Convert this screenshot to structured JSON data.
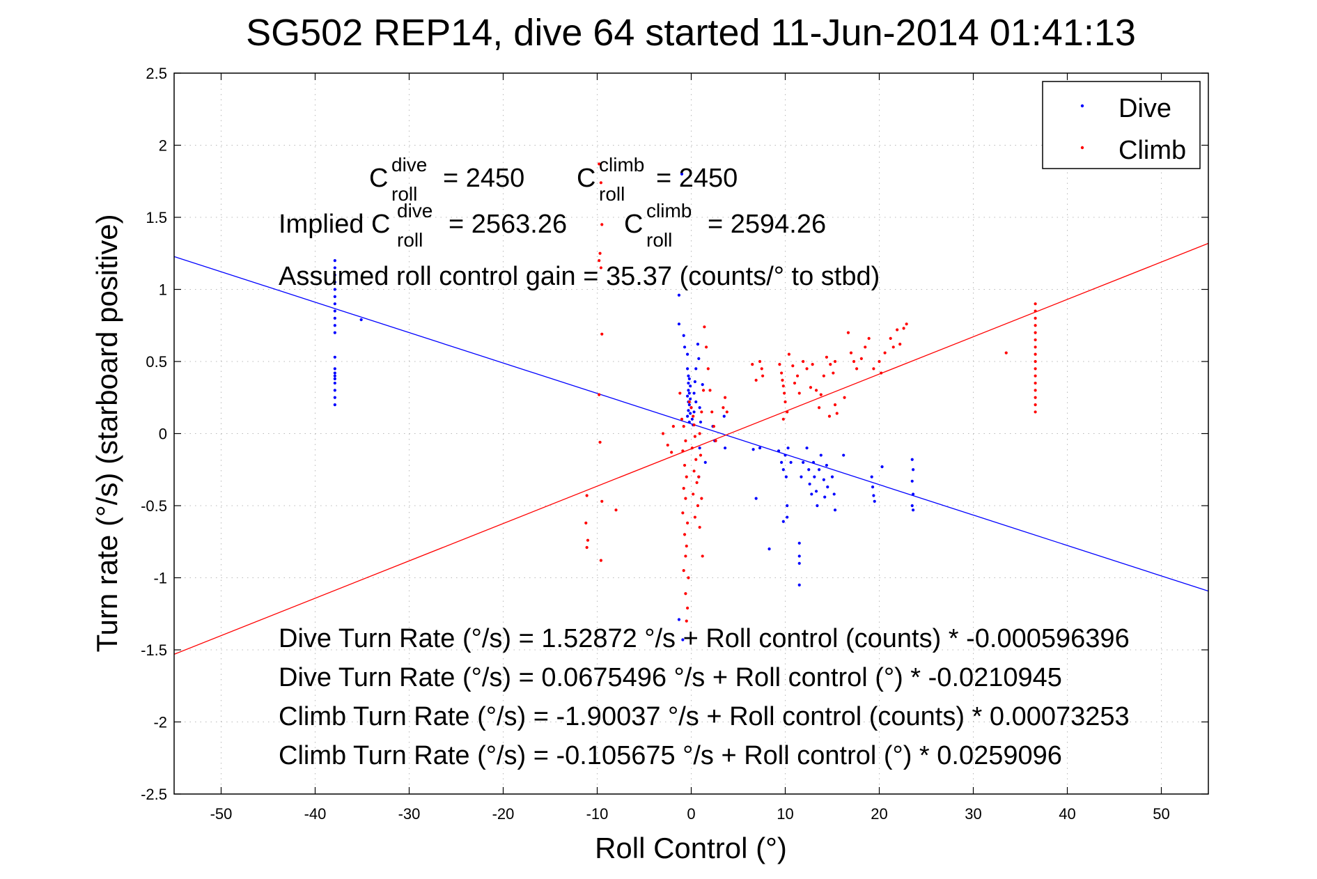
{
  "chart_data": {
    "type": "scatter",
    "title": "SG502 REP14, dive 64 started 11-Jun-2014 01:41:13",
    "xlabel": "Roll Control (°)",
    "ylabel": "Turn rate (°/s) (starboard positive)",
    "xlim": [
      -55,
      55
    ],
    "ylim": [
      -2.5,
      2.5
    ],
    "xticks": [
      -50,
      -40,
      -30,
      -20,
      -10,
      0,
      10,
      20,
      30,
      40,
      50
    ],
    "yticks": [
      -2.5,
      -2,
      -1.5,
      -1,
      -0.5,
      0,
      0.5,
      1,
      1.5,
      2,
      2.5
    ],
    "grid": true,
    "legend_position": "top-right",
    "colors": {
      "dive": "#0000ff",
      "climb": "#ff0000"
    },
    "series": [
      {
        "name": "Dive",
        "marker": "dot",
        "points": [
          [
            -37.9,
            1.2
          ],
          [
            -37.9,
            1.15
          ],
          [
            -37.9,
            1.1
          ],
          [
            -37.9,
            1.05
          ],
          [
            -37.9,
            1.0
          ],
          [
            -37.9,
            0.95
          ],
          [
            -37.9,
            0.9
          ],
          [
            -37.9,
            0.85
          ],
          [
            -37.9,
            0.8
          ],
          [
            -37.9,
            0.75
          ],
          [
            -37.9,
            0.7
          ],
          [
            -37.9,
            0.53
          ],
          [
            -37.9,
            0.45
          ],
          [
            -37.9,
            0.42
          ],
          [
            -37.9,
            0.4
          ],
          [
            -37.9,
            0.38
          ],
          [
            -37.9,
            0.35
          ],
          [
            -37.9,
            0.3
          ],
          [
            -37.9,
            0.25
          ],
          [
            -37.9,
            0.2
          ],
          [
            -35.1,
            0.79
          ],
          [
            -1.0,
            1.8
          ],
          [
            -1.3,
            0.96
          ],
          [
            -1.3,
            0.76
          ],
          [
            -0.8,
            0.68
          ],
          [
            -0.7,
            0.6
          ],
          [
            -0.4,
            0.55
          ],
          [
            -0.4,
            0.45
          ],
          [
            -0.3,
            0.4
          ],
          [
            -0.2,
            0.38
          ],
          [
            -0.3,
            0.35
          ],
          [
            -0.1,
            0.33
          ],
          [
            -0.3,
            0.3
          ],
          [
            -0.2,
            0.28
          ],
          [
            -0.4,
            0.26
          ],
          [
            -0.1,
            0.24
          ],
          [
            -0.3,
            0.22
          ],
          [
            -0.2,
            0.2
          ],
          [
            0.0,
            0.18
          ],
          [
            -0.3,
            0.16
          ],
          [
            -0.1,
            0.14
          ],
          [
            -0.4,
            0.12
          ],
          [
            0.1,
            0.1
          ],
          [
            -0.2,
            0.08
          ],
          [
            0.2,
            0.06
          ],
          [
            0.3,
            0.28
          ],
          [
            0.4,
            0.36
          ],
          [
            0.5,
            0.22
          ],
          [
            0.3,
            0.15
          ],
          [
            0.5,
            0.45
          ],
          [
            0.7,
            0.62
          ],
          [
            0.8,
            0.52
          ],
          [
            1.2,
            0.34
          ],
          [
            0.9,
            0.18
          ],
          [
            1.0,
            0.08
          ],
          [
            0.9,
            -0.1
          ],
          [
            0.8,
            -0.3
          ],
          [
            2.3,
            0.05
          ],
          [
            2.5,
            -0.05
          ],
          [
            3.5,
            0.12
          ],
          [
            3.6,
            -0.1
          ],
          [
            1.5,
            -0.2
          ],
          [
            -1.3,
            -1.29
          ],
          [
            -0.9,
            -1.43
          ],
          [
            6.6,
            -0.11
          ],
          [
            6.9,
            -0.45
          ],
          [
            7.3,
            -0.1
          ],
          [
            8.3,
            -0.8
          ],
          [
            9.3,
            -0.12
          ],
          [
            9.6,
            -0.2
          ],
          [
            9.8,
            -0.25
          ],
          [
            10.0,
            -0.15
          ],
          [
            10.1,
            -0.3
          ],
          [
            10.2,
            -0.5
          ],
          [
            10.2,
            -0.58
          ],
          [
            9.8,
            -0.61
          ],
          [
            10.3,
            -0.1
          ],
          [
            10.6,
            -0.2
          ],
          [
            11.5,
            -0.76
          ],
          [
            11.5,
            -0.85
          ],
          [
            11.5,
            -0.9
          ],
          [
            11.5,
            -1.05
          ],
          [
            11.7,
            -0.3
          ],
          [
            11.9,
            -0.2
          ],
          [
            12.3,
            -0.1
          ],
          [
            12.5,
            -0.25
          ],
          [
            12.6,
            -0.35
          ],
          [
            12.8,
            -0.42
          ],
          [
            13.0,
            -0.2
          ],
          [
            13.1,
            -0.3
          ],
          [
            13.3,
            -0.4
          ],
          [
            13.4,
            -0.5
          ],
          [
            13.6,
            -0.25
          ],
          [
            13.8,
            -0.15
          ],
          [
            14.1,
            -0.32
          ],
          [
            14.2,
            -0.44
          ],
          [
            14.4,
            -0.22
          ],
          [
            14.5,
            -0.37
          ],
          [
            15.0,
            -0.3
          ],
          [
            15.2,
            -0.42
          ],
          [
            15.3,
            -0.53
          ],
          [
            16.2,
            -0.15
          ],
          [
            19.2,
            -0.3
          ],
          [
            19.3,
            -0.37
          ],
          [
            19.4,
            -0.43
          ],
          [
            19.5,
            -0.47
          ],
          [
            20.3,
            -0.23
          ],
          [
            23.5,
            -0.18
          ],
          [
            23.6,
            -0.25
          ],
          [
            23.5,
            -0.33
          ],
          [
            23.6,
            -0.42
          ],
          [
            23.5,
            -0.5
          ],
          [
            23.6,
            -0.53
          ]
        ]
      },
      {
        "name": "Climb",
        "marker": "dot",
        "points": [
          [
            -9.8,
            1.87
          ],
          [
            -9.6,
            1.74
          ],
          [
            -9.5,
            1.45
          ],
          [
            -9.7,
            1.25
          ],
          [
            -9.8,
            1.2
          ],
          [
            -9.6,
            1.15
          ],
          [
            -9.5,
            0.69
          ],
          [
            -9.8,
            0.27
          ],
          [
            -9.7,
            -0.06
          ],
          [
            -9.5,
            -0.47
          ],
          [
            -9.6,
            -0.88
          ],
          [
            -11.1,
            -0.43
          ],
          [
            -11.2,
            -0.62
          ],
          [
            -11.0,
            -0.74
          ],
          [
            -11.1,
            -0.79
          ],
          [
            -8.0,
            -0.53
          ],
          [
            -1.2,
            0.28
          ],
          [
            -1.0,
            0.1
          ],
          [
            -0.8,
            0.05
          ],
          [
            -0.6,
            -0.05
          ],
          [
            -0.9,
            -0.12
          ],
          [
            -0.7,
            -0.22
          ],
          [
            -0.5,
            -0.3
          ],
          [
            -0.8,
            -0.38
          ],
          [
            -0.6,
            -0.45
          ],
          [
            -0.9,
            -0.55
          ],
          [
            -0.4,
            -0.62
          ],
          [
            -0.7,
            -0.7
          ],
          [
            -0.5,
            -0.78
          ],
          [
            -0.6,
            -0.85
          ],
          [
            -0.8,
            -0.95
          ],
          [
            -0.3,
            -1.0
          ],
          [
            -0.6,
            -1.11
          ],
          [
            -0.4,
            -1.21
          ],
          [
            -0.5,
            -1.3
          ],
          [
            -0.2,
            0.22
          ],
          [
            0.0,
            0.18
          ],
          [
            0.2,
            0.12
          ],
          [
            0.3,
            0.06
          ],
          [
            0.4,
            -0.02
          ],
          [
            0.1,
            -0.1
          ],
          [
            0.5,
            -0.18
          ],
          [
            0.3,
            -0.26
          ],
          [
            0.6,
            -0.34
          ],
          [
            0.2,
            -0.42
          ],
          [
            0.7,
            -0.5
          ],
          [
            0.4,
            -0.58
          ],
          [
            0.8,
            -0.3
          ],
          [
            1.0,
            -0.15
          ],
          [
            0.9,
            0.0
          ],
          [
            1.1,
            0.15
          ],
          [
            1.3,
            0.3
          ],
          [
            1.1,
            -0.45
          ],
          [
            0.9,
            -0.65
          ],
          [
            1.2,
            -0.85
          ],
          [
            -3.0,
            0.0
          ],
          [
            -2.5,
            -0.08
          ],
          [
            -2.1,
            -0.13
          ],
          [
            -1.9,
            0.05
          ],
          [
            1.4,
            0.74
          ],
          [
            1.6,
            0.6
          ],
          [
            1.8,
            0.45
          ],
          [
            2.0,
            0.3
          ],
          [
            2.2,
            0.15
          ],
          [
            2.4,
            0.05
          ],
          [
            2.6,
            -0.05
          ],
          [
            3.4,
            0.18
          ],
          [
            3.6,
            0.25
          ],
          [
            3.8,
            0.15
          ],
          [
            6.5,
            0.48
          ],
          [
            6.9,
            0.37
          ],
          [
            7.3,
            0.5
          ],
          [
            7.6,
            0.4
          ],
          [
            7.5,
            0.45
          ],
          [
            9.4,
            0.48
          ],
          [
            9.6,
            0.42
          ],
          [
            9.7,
            0.37
          ],
          [
            9.8,
            0.33
          ],
          [
            9.9,
            0.28
          ],
          [
            10.0,
            0.22
          ],
          [
            10.2,
            0.15
          ],
          [
            9.8,
            0.1
          ],
          [
            10.4,
            0.55
          ],
          [
            10.8,
            0.47
          ],
          [
            11.0,
            0.35
          ],
          [
            11.3,
            0.4
          ],
          [
            11.5,
            0.28
          ],
          [
            11.9,
            0.5
          ],
          [
            12.3,
            0.45
          ],
          [
            12.7,
            0.32
          ],
          [
            12.9,
            0.48
          ],
          [
            13.3,
            0.3
          ],
          [
            13.6,
            0.18
          ],
          [
            13.8,
            0.27
          ],
          [
            14.1,
            0.4
          ],
          [
            14.4,
            0.53
          ],
          [
            14.8,
            0.48
          ],
          [
            14.7,
            0.12
          ],
          [
            15.1,
            0.42
          ],
          [
            15.3,
            0.2
          ],
          [
            15.5,
            0.14
          ],
          [
            15.3,
            0.5
          ],
          [
            16.3,
            0.25
          ],
          [
            16.7,
            0.7
          ],
          [
            17.0,
            0.56
          ],
          [
            17.3,
            0.5
          ],
          [
            17.6,
            0.45
          ],
          [
            18.1,
            0.52
          ],
          [
            18.5,
            0.6
          ],
          [
            18.9,
            0.66
          ],
          [
            19.4,
            0.45
          ],
          [
            20.0,
            0.5
          ],
          [
            20.2,
            0.42
          ],
          [
            20.6,
            0.56
          ],
          [
            21.2,
            0.66
          ],
          [
            21.5,
            0.6
          ],
          [
            21.9,
            0.72
          ],
          [
            22.2,
            0.62
          ],
          [
            22.6,
            0.73
          ],
          [
            22.9,
            0.76
          ],
          [
            33.5,
            0.56
          ],
          [
            36.6,
            0.9
          ],
          [
            36.6,
            0.85
          ],
          [
            36.6,
            0.8
          ],
          [
            36.6,
            0.75
          ],
          [
            36.6,
            0.7
          ],
          [
            36.6,
            0.65
          ],
          [
            36.6,
            0.6
          ],
          [
            36.6,
            0.55
          ],
          [
            36.6,
            0.5
          ],
          [
            36.6,
            0.45
          ],
          [
            36.6,
            0.4
          ],
          [
            36.6,
            0.35
          ],
          [
            36.6,
            0.3
          ],
          [
            36.6,
            0.25
          ],
          [
            36.6,
            0.2
          ],
          [
            36.6,
            0.15
          ]
        ]
      }
    ],
    "fit_lines": [
      {
        "series": "Dive",
        "intercept": 0.0675496,
        "slope": -0.0210945
      },
      {
        "series": "Climb",
        "intercept": -0.105675,
        "slope": 0.0259096
      }
    ],
    "annotations": {
      "c_roll_label": "C",
      "roll_sub": "roll",
      "dive_sup": "dive",
      "climb_sup": "climb",
      "c_dive_value": "= 2450",
      "c_climb_value": "= 2450",
      "implied_prefix": "Implied C",
      "implied_dive_value": "= 2563.26",
      "implied_climb_value": "= 2594.26",
      "gain": "Assumed roll control gain = 35.37 (counts/° to stbd)",
      "eq1": "Dive Turn Rate (°/s) = 1.52872 °/s + Roll control (counts) * -0.000596396",
      "eq2": "Dive Turn Rate (°/s) = 0.0675496 °/s + Roll control (°) * -0.0210945",
      "eq3": "Climb Turn Rate (°/s) = -1.90037 °/s + Roll control (counts) * 0.00073253",
      "eq4": "Climb Turn Rate (°/s) = -0.105675 °/s + Roll control (°) * 0.0259096"
    }
  }
}
